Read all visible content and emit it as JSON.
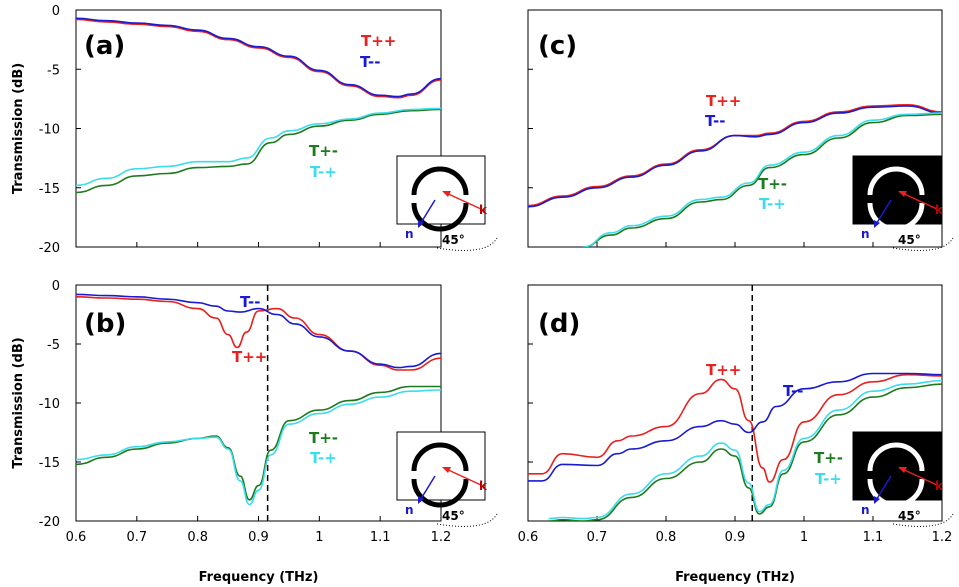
{
  "chart_data": [
    {
      "type": "line",
      "panel": "(a)",
      "xlabel": "",
      "ylabel": "Transmission (dB)",
      "xlim": [
        0.6,
        1.2
      ],
      "ylim": [
        -20,
        0
      ],
      "xticks": [],
      "yticks": [
        "0",
        "-5",
        "-10",
        "-15",
        "-20"
      ],
      "series": [
        {
          "name": "T++",
          "color": "#e8201e",
          "x": [
            0.6,
            0.65,
            0.7,
            0.75,
            0.8,
            0.85,
            0.9,
            0.95,
            1.0,
            1.05,
            1.1,
            1.13,
            1.15,
            1.2
          ],
          "y": [
            -0.8,
            -1.0,
            -1.2,
            -1.4,
            -1.8,
            -2.5,
            -3.2,
            -4.0,
            -5.2,
            -6.4,
            -7.3,
            -7.4,
            -7.2,
            -5.9
          ]
        },
        {
          "name": "T--",
          "color": "#1a1ad0",
          "x": [
            0.6,
            0.65,
            0.7,
            0.75,
            0.8,
            0.85,
            0.9,
            0.95,
            1.0,
            1.05,
            1.1,
            1.13,
            1.15,
            1.2
          ],
          "y": [
            -0.7,
            -0.9,
            -1.1,
            -1.3,
            -1.7,
            -2.4,
            -3.1,
            -3.9,
            -5.1,
            -6.3,
            -7.2,
            -7.3,
            -7.1,
            -5.8
          ]
        },
        {
          "name": "T+-",
          "color": "#1e7a1e",
          "x": [
            0.6,
            0.65,
            0.7,
            0.75,
            0.8,
            0.85,
            0.88,
            0.92,
            0.95,
            1.0,
            1.05,
            1.1,
            1.15,
            1.2
          ],
          "y": [
            -15.4,
            -14.8,
            -14.0,
            -13.8,
            -13.3,
            -13.2,
            -13.0,
            -11.2,
            -10.5,
            -9.8,
            -9.3,
            -8.8,
            -8.5,
            -8.4
          ]
        },
        {
          "name": "T-+",
          "color": "#3ddcea",
          "x": [
            0.6,
            0.65,
            0.7,
            0.75,
            0.8,
            0.85,
            0.88,
            0.92,
            0.95,
            1.0,
            1.05,
            1.1,
            1.15,
            1.2
          ],
          "y": [
            -14.8,
            -14.2,
            -13.4,
            -13.2,
            -12.8,
            -12.8,
            -12.5,
            -10.8,
            -10.2,
            -9.6,
            -9.2,
            -8.7,
            -8.4,
            -8.3
          ]
        }
      ],
      "annotations": [
        {
          "text": "45°"
        },
        {
          "text": "k"
        },
        {
          "text": "n"
        }
      ]
    },
    {
      "type": "line",
      "panel": "(c)",
      "xlabel": "",
      "ylabel": "",
      "xlim": [
        0.6,
        1.2
      ],
      "ylim": [
        -20,
        0
      ],
      "xticks": [],
      "yticks": [],
      "series": [
        {
          "name": "T++",
          "color": "#e8201e",
          "x": [
            0.6,
            0.65,
            0.7,
            0.75,
            0.8,
            0.85,
            0.9,
            0.93,
            0.95,
            1.0,
            1.05,
            1.1,
            1.15,
            1.2
          ],
          "y": [
            -16.5,
            -15.7,
            -14.9,
            -14.0,
            -13.0,
            -11.8,
            -10.6,
            -10.6,
            -10.4,
            -9.4,
            -8.6,
            -8.1,
            -8.0,
            -8.6
          ]
        },
        {
          "name": "T--",
          "color": "#1a1ad0",
          "x": [
            0.6,
            0.65,
            0.7,
            0.75,
            0.8,
            0.85,
            0.9,
            0.93,
            0.95,
            1.0,
            1.05,
            1.1,
            1.15,
            1.2
          ],
          "y": [
            -16.6,
            -15.8,
            -15.0,
            -14.1,
            -13.1,
            -11.9,
            -10.6,
            -10.7,
            -10.5,
            -9.5,
            -8.7,
            -8.2,
            -8.1,
            -8.7
          ]
        },
        {
          "name": "T+-",
          "color": "#1e7a1e",
          "x": [
            0.68,
            0.72,
            0.75,
            0.8,
            0.85,
            0.88,
            0.92,
            0.95,
            1.0,
            1.05,
            1.1,
            1.15,
            1.2
          ],
          "y": [
            -20.0,
            -19.0,
            -18.4,
            -17.6,
            -16.2,
            -16.0,
            -14.8,
            -13.3,
            -12.2,
            -10.8,
            -9.5,
            -8.9,
            -8.8
          ]
        },
        {
          "name": "T-+",
          "color": "#3ddcea",
          "x": [
            0.68,
            0.72,
            0.75,
            0.8,
            0.85,
            0.88,
            0.92,
            0.95,
            1.0,
            1.05,
            1.1,
            1.15,
            1.2
          ],
          "y": [
            -20.0,
            -18.8,
            -18.2,
            -17.4,
            -16.0,
            -15.8,
            -14.6,
            -13.1,
            -12.0,
            -10.6,
            -9.3,
            -8.8,
            -8.7
          ]
        }
      ],
      "annotations": [
        {
          "text": "45°"
        },
        {
          "text": "k"
        },
        {
          "text": "n"
        }
      ]
    },
    {
      "type": "line",
      "panel": "(b)",
      "xlabel": "Frequency (THz)",
      "ylabel": "Transmission (dB)",
      "xlim": [
        0.6,
        1.2
      ],
      "ylim": [
        -20,
        0
      ],
      "xticks": [
        "0.6",
        "0.7",
        "0.8",
        "0.9",
        "1",
        "1.1",
        "1.2"
      ],
      "yticks": [
        "0",
        "-5",
        "-10",
        "-15",
        "-20"
      ],
      "series": [
        {
          "name": "T++",
          "color": "#e8201e",
          "x": [
            0.6,
            0.65,
            0.7,
            0.75,
            0.8,
            0.83,
            0.85,
            0.865,
            0.88,
            0.9,
            0.93,
            0.96,
            1.0,
            1.05,
            1.1,
            1.13,
            1.15,
            1.2
          ],
          "y": [
            -1.0,
            -1.1,
            -1.2,
            -1.4,
            -2.0,
            -2.8,
            -4.2,
            -5.3,
            -4.0,
            -2.2,
            -2.0,
            -2.8,
            -4.2,
            -5.6,
            -6.8,
            -7.2,
            -7.2,
            -6.2
          ]
        },
        {
          "name": "T--",
          "color": "#1a1ad0",
          "x": [
            0.6,
            0.65,
            0.7,
            0.75,
            0.8,
            0.83,
            0.85,
            0.87,
            0.9,
            0.93,
            0.96,
            1.0,
            1.05,
            1.1,
            1.13,
            1.15,
            1.2
          ],
          "y": [
            -0.8,
            -0.9,
            -1.0,
            -1.2,
            -1.5,
            -1.8,
            -2.2,
            -2.3,
            -2.0,
            -2.5,
            -3.3,
            -4.4,
            -5.6,
            -6.7,
            -7.0,
            -6.9,
            -5.8
          ]
        },
        {
          "name": "T+-",
          "color": "#1e7a1e",
          "x": [
            0.6,
            0.65,
            0.7,
            0.75,
            0.8,
            0.83,
            0.85,
            0.87,
            0.885,
            0.9,
            0.92,
            0.95,
            1.0,
            1.05,
            1.1,
            1.15,
            1.2
          ],
          "y": [
            -15.2,
            -14.6,
            -13.9,
            -13.4,
            -13.0,
            -12.8,
            -13.8,
            -16.2,
            -18.2,
            -17.0,
            -14.0,
            -11.5,
            -10.6,
            -9.8,
            -9.1,
            -8.6,
            -8.6
          ]
        },
        {
          "name": "T-+",
          "color": "#3ddcea",
          "x": [
            0.6,
            0.65,
            0.7,
            0.75,
            0.8,
            0.83,
            0.85,
            0.87,
            0.885,
            0.9,
            0.92,
            0.95,
            1.0,
            1.05,
            1.1,
            1.15,
            1.2
          ],
          "y": [
            -14.8,
            -14.4,
            -13.7,
            -13.3,
            -13.0,
            -12.9,
            -13.9,
            -16.6,
            -18.6,
            -17.4,
            -14.4,
            -11.8,
            -10.9,
            -10.1,
            -9.5,
            -9.0,
            -8.9
          ]
        }
      ],
      "reference_line": {
        "x": 0.915,
        "style": "dashed"
      },
      "annotations": [
        {
          "text": "45°"
        },
        {
          "text": "k"
        },
        {
          "text": "n"
        }
      ]
    },
    {
      "type": "line",
      "panel": "(d)",
      "xlabel": "Frequency (THz)",
      "ylabel": "",
      "xlim": [
        0.6,
        1.2
      ],
      "ylim": [
        -20,
        0
      ],
      "xticks": [
        "0.6",
        "0.7",
        "0.8",
        "0.9",
        "1",
        "1.1",
        "1.2"
      ],
      "yticks": [],
      "series": [
        {
          "name": "T++",
          "color": "#e8201e",
          "x": [
            0.6,
            0.62,
            0.65,
            0.7,
            0.73,
            0.75,
            0.8,
            0.85,
            0.88,
            0.9,
            0.92,
            0.94,
            0.95,
            0.97,
            1.0,
            1.05,
            1.1,
            1.15,
            1.2
          ],
          "y": [
            -16.0,
            -16.0,
            -14.3,
            -14.6,
            -13.2,
            -12.8,
            -12.0,
            -9.2,
            -8.0,
            -8.8,
            -11.5,
            -15.5,
            -16.7,
            -14.8,
            -11.6,
            -9.3,
            -8.2,
            -7.6,
            -7.7
          ]
        },
        {
          "name": "T--",
          "color": "#1a1ad0",
          "x": [
            0.6,
            0.62,
            0.65,
            0.7,
            0.73,
            0.75,
            0.8,
            0.85,
            0.88,
            0.9,
            0.92,
            0.94,
            0.96,
            1.0,
            1.05,
            1.1,
            1.15,
            1.2
          ],
          "y": [
            -16.6,
            -16.6,
            -15.2,
            -15.3,
            -14.3,
            -13.9,
            -13.2,
            -12.0,
            -11.5,
            -11.8,
            -12.5,
            -11.6,
            -10.3,
            -8.8,
            -8.2,
            -7.5,
            -7.5,
            -7.6
          ]
        },
        {
          "name": "T+-",
          "color": "#1e7a1e",
          "x": [
            0.63,
            0.65,
            0.68,
            0.7,
            0.75,
            0.8,
            0.85,
            0.88,
            0.9,
            0.92,
            0.935,
            0.95,
            0.97,
            1.0,
            1.05,
            1.1,
            1.15,
            1.2
          ],
          "y": [
            -20.0,
            -19.9,
            -20.0,
            -19.9,
            -18.0,
            -16.4,
            -15.0,
            -13.9,
            -14.5,
            -17.2,
            -19.4,
            -18.8,
            -16.0,
            -13.3,
            -11.0,
            -9.5,
            -8.7,
            -8.4
          ]
        },
        {
          "name": "T-+",
          "color": "#3ddcea",
          "x": [
            0.63,
            0.65,
            0.68,
            0.7,
            0.75,
            0.8,
            0.85,
            0.88,
            0.9,
            0.92,
            0.935,
            0.95,
            0.97,
            1.0,
            1.05,
            1.1,
            1.15,
            1.2
          ],
          "y": [
            -19.8,
            -19.7,
            -19.8,
            -19.7,
            -17.7,
            -16.0,
            -14.5,
            -13.4,
            -14.0,
            -16.8,
            -19.2,
            -18.6,
            -15.7,
            -13.0,
            -10.6,
            -9.0,
            -8.4,
            -8.1
          ]
        }
      ],
      "reference_line": {
        "x": 0.925,
        "style": "dashed"
      },
      "annotations": [
        {
          "text": "45°"
        },
        {
          "text": "k"
        },
        {
          "text": "n"
        }
      ]
    }
  ]
}
